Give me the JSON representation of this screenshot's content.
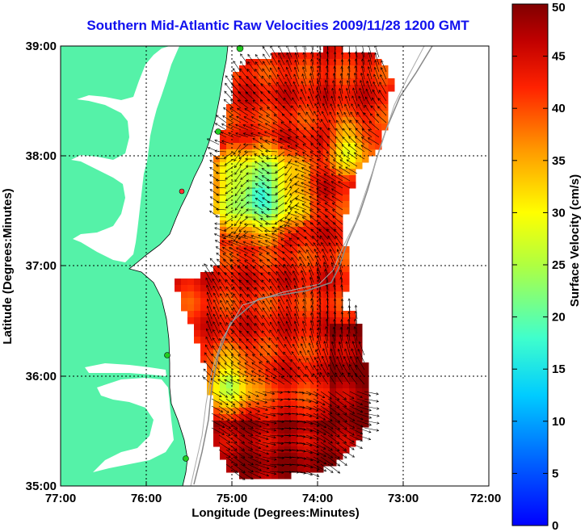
{
  "title": "Southern Mid-Atlantic Raw Velocities 2009/11/28 1200 GMT",
  "x_axis": {
    "label": "Longitude (Degrees:Minutes)",
    "ticks": [
      "77:00",
      "76:00",
      "75:00",
      "74:00",
      "73:00",
      "72:00"
    ]
  },
  "y_axis": {
    "label": "Latitude (Degrees:Minutes)",
    "ticks": [
      "39:00",
      "38:00",
      "37:00",
      "36:00",
      "35:00"
    ]
  },
  "colorbar": {
    "label": "Surface Velocity (cm/s)",
    "ticks": [
      "50",
      "45",
      "40",
      "35",
      "30",
      "25",
      "20",
      "15",
      "10",
      "5",
      "0"
    ],
    "min": 0,
    "max": 50
  },
  "colors": {
    "land": "#55f2a8",
    "title": "#1010ee",
    "station": "#22cc22",
    "station_alt": "#ff3333"
  }
}
